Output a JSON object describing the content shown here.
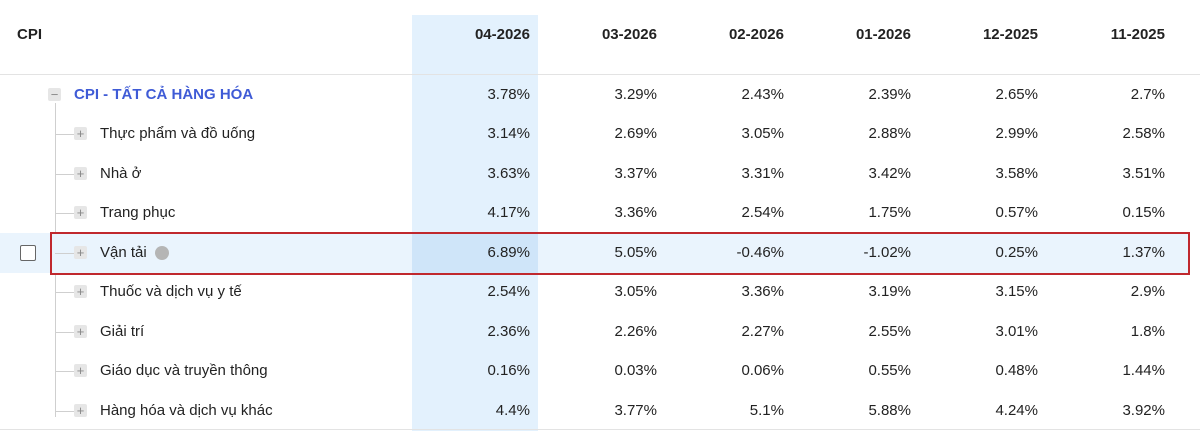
{
  "table": {
    "header": {
      "label": "CPI",
      "columns": [
        "04-2026",
        "03-2026",
        "02-2026",
        "01-2026",
        "12-2025",
        "11-2025"
      ]
    },
    "rows": [
      {
        "label": "CPI - TẤT CẢ HÀNG HÓA",
        "values": [
          "3.78%",
          "3.29%",
          "2.43%",
          "2.39%",
          "2.65%",
          "2.7%"
        ]
      },
      {
        "label": "Thực phẩm và đồ uống",
        "values": [
          "3.14%",
          "2.69%",
          "3.05%",
          "2.88%",
          "2.99%",
          "2.58%"
        ]
      },
      {
        "label": "Nhà ở",
        "values": [
          "3.63%",
          "3.37%",
          "3.31%",
          "3.42%",
          "3.58%",
          "3.51%"
        ]
      },
      {
        "label": "Trang phục",
        "values": [
          "4.17%",
          "3.36%",
          "2.54%",
          "1.75%",
          "0.57%",
          "0.15%"
        ]
      },
      {
        "label": "Vận tải",
        "values": [
          "6.89%",
          "5.05%",
          "-0.46%",
          "-1.02%",
          "0.25%",
          "1.37%"
        ]
      },
      {
        "label": "Thuốc và dịch vụ y tế",
        "values": [
          "2.54%",
          "3.05%",
          "3.36%",
          "3.19%",
          "3.15%",
          "2.9%"
        ]
      },
      {
        "label": "Giải trí",
        "values": [
          "2.36%",
          "2.26%",
          "2.27%",
          "2.55%",
          "3.01%",
          "1.8%"
        ]
      },
      {
        "label": "Giáo dục và truyền thông",
        "values": [
          "0.16%",
          "0.03%",
          "0.06%",
          "0.55%",
          "0.48%",
          "1.44%"
        ]
      },
      {
        "label": "Hàng hóa và dịch vụ khác",
        "values": [
          "4.4%",
          "3.77%",
          "5.1%",
          "5.88%",
          "4.24%",
          "3.92%"
        ]
      }
    ]
  }
}
